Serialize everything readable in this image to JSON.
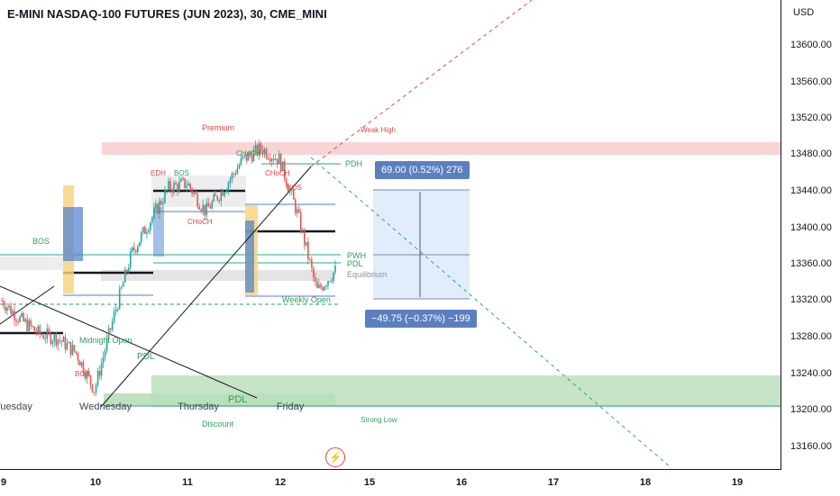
{
  "title": "E-MINI NASDAQ-100 FUTURES (JUN 2023), 30, CME_MINI",
  "currency": "USD",
  "price_axis": [
    "13600.00",
    "13560.00",
    "13520.00",
    "13480.00",
    "13440.00",
    "13400.00",
    "13360.00",
    "13320.00",
    "13280.00",
    "13240.00",
    "13200.00",
    "13160.00"
  ],
  "time_axis": [
    "9",
    "10",
    "11",
    "12",
    "15",
    "16",
    "17",
    "18",
    "19"
  ],
  "day_labels": [
    "Tuesday",
    "Wednesday",
    "Thursday",
    "Friday"
  ],
  "annotations": {
    "premium": "Premium",
    "discount": "Discount",
    "weak_high": "Weak High",
    "strong_low": "Strong Low",
    "pdh": "PDH",
    "pwh": "PWH",
    "pdl": "PDL",
    "pdl2": "PDL",
    "pdl3": "PDL",
    "equilibrium": "Equilibrium",
    "weekly_open": "Weekly Open",
    "midnight_open": "Midnight Open",
    "bos": "BOS",
    "choch": "CHoCH",
    "edh": "EDH"
  },
  "measure": {
    "up": "69.00 (0.52%) 276",
    "down": "−49.75 (−0.37%) −199"
  },
  "colors": {
    "bull": "#26a69a",
    "bear": "#ef5350",
    "premium_zone": "#f7c6c6",
    "discount_zone": "#b7dfb8",
    "measure": "#5b7fc0"
  },
  "chart_data": {
    "type": "candlestick",
    "symbol": "E-MINI NASDAQ-100 FUTURES (JUN 2023)",
    "interval": "30",
    "exchange": "CME_MINI",
    "ylim": [
      13140,
      13640
    ],
    "x_ticks": [
      "9",
      "10",
      "11",
      "12",
      "15",
      "16",
      "17",
      "18",
      "19"
    ],
    "y_ticks": [
      13600,
      13560,
      13520,
      13480,
      13440,
      13400,
      13360,
      13320,
      13280,
      13240,
      13200,
      13160
    ],
    "close_path": [
      {
        "x": "9",
        "y": 13320
      },
      {
        "x": "9",
        "y": 13300
      },
      {
        "x": "9",
        "y": 13285
      },
      {
        "x": "9",
        "y": 13280
      },
      {
        "x": "10",
        "y": 13265
      },
      {
        "x": "10",
        "y": 13225
      },
      {
        "x": "10",
        "y": 13300
      },
      {
        "x": "10",
        "y": 13370
      },
      {
        "x": "10",
        "y": 13405
      },
      {
        "x": "11",
        "y": 13440
      },
      {
        "x": "11",
        "y": 13445
      },
      {
        "x": "11",
        "y": 13415
      },
      {
        "x": "11",
        "y": 13440
      },
      {
        "x": "12",
        "y": 13470
      },
      {
        "x": "12",
        "y": 13482
      },
      {
        "x": "12",
        "y": 13470
      },
      {
        "x": "12",
        "y": 13410
      },
      {
        "x": "12",
        "y": 13330
      },
      {
        "x": "12",
        "y": 13352
      }
    ],
    "zones": {
      "premium": [
        13482,
        13496
      ],
      "discount": [
        13205,
        13237
      ]
    },
    "measurements": [
      {
        "label": "69.00 (0.52%) 276",
        "points": 69.0,
        "percent": 0.52
      },
      {
        "label": "−49.75 (−0.37%) −199",
        "points": -49.75,
        "percent": -0.37
      }
    ]
  }
}
